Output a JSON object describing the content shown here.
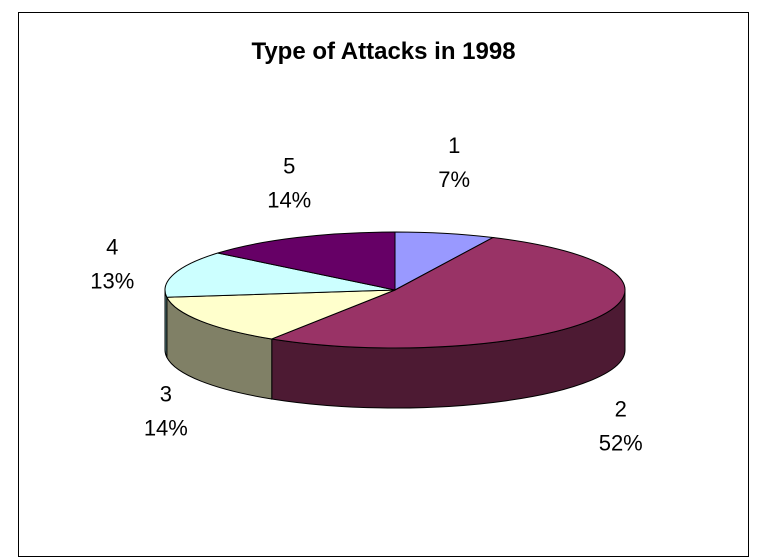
{
  "chart_data": {
    "type": "pie",
    "title": "Type of Attacks in 1998",
    "categories": [
      "1",
      "2",
      "3",
      "4",
      "5"
    ],
    "values": [
      7,
      52,
      14,
      13,
      14
    ],
    "percent_labels": [
      "7%",
      "52%",
      "14%",
      "13%",
      "14%"
    ],
    "colors": [
      "#9999ff",
      "#993366",
      "#ffffcc",
      "#ccffff",
      "#660066"
    ],
    "side_colors": [
      "#5c5c99",
      "#4d1a33",
      "#808066",
      "#669999",
      "#330033"
    ],
    "start_angle_deg": -90,
    "three_d": true,
    "legend": "none"
  }
}
